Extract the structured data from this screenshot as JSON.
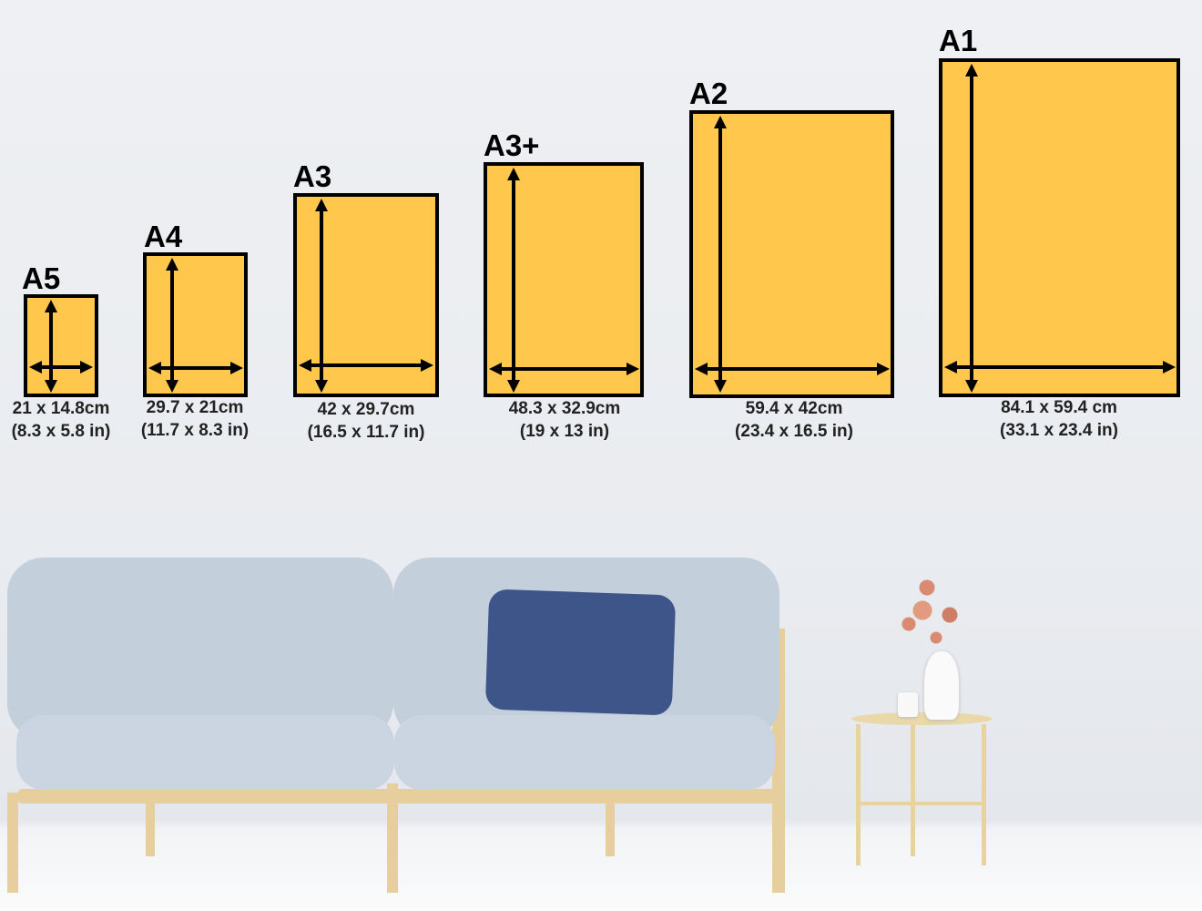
{
  "colors": {
    "frame_fill": "#ffc84c",
    "frame_border": "#000000",
    "wall": "#eceef2",
    "sofa": "#c9d4e0",
    "cushion": "#3d5588"
  },
  "sizes": [
    {
      "name": "A5",
      "metric": "21 x 14.8cm",
      "imperial": "(8.3 x 5.8 in)"
    },
    {
      "name": "A4",
      "metric": "29.7 x 21cm",
      "imperial": "(11.7 x 8.3 in)"
    },
    {
      "name": "A3",
      "metric": "42 x 29.7cm",
      "imperial": "(16.5 x 11.7 in)"
    },
    {
      "name": "A3+",
      "metric": "48.3 x 32.9cm",
      "imperial": "(19 x 13 in)"
    },
    {
      "name": "A2",
      "metric": "59.4 x 42cm",
      "imperial": "(23.4 x 16.5 in)"
    },
    {
      "name": "A1",
      "metric": "84.1 x 59.4 cm",
      "imperial": "(33.1 x 23.4 in)"
    }
  ]
}
